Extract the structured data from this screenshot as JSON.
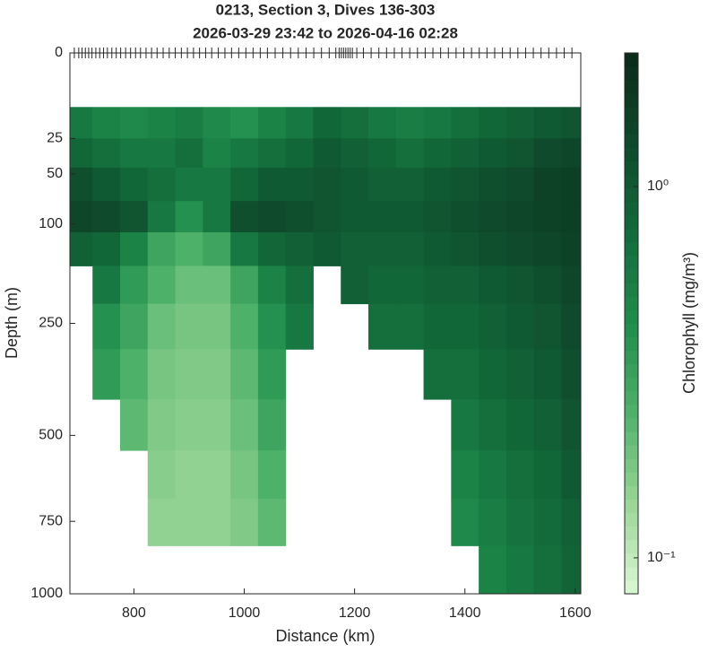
{
  "chart_data": {
    "type": "section",
    "title": [
      "0213, Section 3, Dives 136-303",
      "2026-03-29 23:42 to 2026-04-16 02:28"
    ],
    "xlabel": "Distance (km)",
    "ylabel": "Depth (m)",
    "colorbar_label": "Chlorophyll (mg/m³)",
    "xlim": [
      684,
      1610
    ],
    "xticks": [
      800,
      1000,
      1200,
      1400,
      1600
    ],
    "ylim": [
      0,
      1000
    ],
    "yscale": "sqrt",
    "yticks": [
      0,
      25,
      50,
      100,
      250,
      500,
      750,
      1000
    ],
    "clim": [
      0.08,
      2.29
    ],
    "cscale": "log",
    "cticks": [
      {
        "value": 0.1,
        "label": "10⁻¹"
      },
      {
        "value": 1,
        "label": "10⁰"
      }
    ],
    "colormap": [
      "#dcf8d6",
      "#9ad596",
      "#4fb26a",
      "#1f8c4c",
      "#136b3b",
      "#0e4a2b",
      "#0a2a1a"
    ],
    "dives_x": [
      692,
      700,
      706,
      712,
      718,
      724,
      731,
      738,
      745,
      752,
      760,
      768,
      776,
      785,
      794,
      803,
      812,
      822,
      832,
      842,
      853,
      864,
      875,
      886,
      897,
      908,
      919,
      930,
      941,
      953,
      965,
      977,
      990,
      1003,
      1016,
      1029,
      1042,
      1056,
      1070,
      1084,
      1098,
      1112,
      1126,
      1140,
      1154,
      1166,
      1172,
      1176,
      1180,
      1184,
      1188,
      1192,
      1196,
      1204,
      1216,
      1230,
      1244,
      1258,
      1272,
      1286,
      1300,
      1314,
      1328,
      1342,
      1356,
      1370,
      1384,
      1398,
      1412,
      1426,
      1440,
      1454,
      1468,
      1482,
      1496,
      1510,
      1524,
      1538,
      1552,
      1566,
      1580,
      1594
    ],
    "x_bins": [
      675,
      725,
      775,
      825,
      875,
      925,
      975,
      1025,
      1075,
      1125,
      1175,
      1225,
      1275,
      1325,
      1375,
      1425,
      1475,
      1525,
      1575,
      1625
    ],
    "depth_bins": [
      10,
      25,
      45,
      75,
      110,
      155,
      215,
      300,
      410,
      540,
      680,
      830,
      1000
    ],
    "values": [
      [
        0.6,
        0.5,
        0.45,
        0.5,
        0.55,
        0.45,
        0.4,
        0.5,
        0.6,
        0.8,
        0.7,
        0.6,
        0.55,
        0.6,
        0.7,
        0.8,
        0.9,
        1.0,
        1.1
      ],
      [
        0.8,
        0.7,
        0.6,
        0.6,
        0.7,
        0.5,
        0.6,
        0.7,
        0.8,
        1.0,
        0.9,
        0.8,
        0.7,
        0.8,
        0.9,
        1.0,
        1.1,
        1.3,
        1.4
      ],
      [
        1.2,
        1.0,
        0.8,
        0.7,
        0.6,
        0.6,
        0.8,
        1.0,
        1.0,
        1.1,
        1.0,
        0.9,
        0.9,
        1.0,
        1.1,
        1.2,
        1.3,
        1.5,
        1.6
      ],
      [
        1.4,
        1.3,
        1.1,
        0.6,
        0.4,
        0.6,
        1.2,
        1.3,
        1.2,
        1.1,
        1.0,
        1.0,
        1.0,
        1.1,
        1.2,
        1.3,
        1.4,
        1.5,
        1.6
      ],
      [
        0.9,
        0.8,
        0.5,
        0.3,
        0.25,
        0.3,
        0.6,
        0.8,
        0.9,
        1.0,
        0.9,
        0.9,
        0.9,
        1.0,
        1.1,
        1.2,
        1.3,
        1.4,
        1.5
      ],
      [
        null,
        0.6,
        0.35,
        0.25,
        0.2,
        0.2,
        0.3,
        0.5,
        0.7,
        null,
        0.9,
        0.8,
        0.8,
        0.9,
        0.9,
        1.0,
        1.1,
        1.2,
        1.4
      ],
      [
        null,
        0.4,
        0.3,
        0.2,
        0.18,
        0.18,
        0.25,
        0.4,
        0.6,
        null,
        null,
        0.7,
        0.7,
        0.8,
        0.8,
        0.9,
        1.0,
        1.1,
        1.3
      ],
      [
        null,
        0.35,
        0.25,
        0.18,
        0.17,
        0.17,
        0.22,
        0.35,
        null,
        null,
        null,
        null,
        null,
        0.7,
        0.7,
        0.8,
        0.9,
        1.0,
        1.2
      ],
      [
        null,
        null,
        0.22,
        0.17,
        0.16,
        0.16,
        0.2,
        0.3,
        null,
        null,
        null,
        null,
        null,
        null,
        0.6,
        0.7,
        0.8,
        0.9,
        1.1
      ],
      [
        null,
        null,
        null,
        0.16,
        0.15,
        0.15,
        0.18,
        0.25,
        null,
        null,
        null,
        null,
        null,
        null,
        0.5,
        0.6,
        0.7,
        0.8,
        1.0
      ],
      [
        null,
        null,
        null,
        0.15,
        0.15,
        0.15,
        0.17,
        0.22,
        null,
        null,
        null,
        null,
        null,
        null,
        0.45,
        0.55,
        0.65,
        0.75,
        0.9
      ],
      [
        null,
        null,
        null,
        null,
        null,
        null,
        null,
        null,
        null,
        null,
        null,
        null,
        null,
        null,
        null,
        0.5,
        0.6,
        0.7,
        0.85
      ]
    ]
  }
}
